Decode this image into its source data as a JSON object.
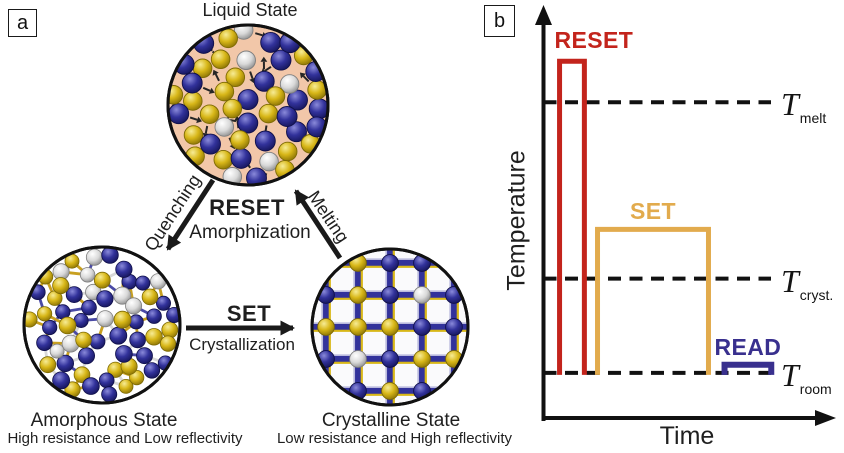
{
  "figure": {
    "panel_a": {
      "label": "a",
      "liquid": {
        "title": "Liquid State"
      },
      "transitions": {
        "quenching": "Quenching",
        "melting": "Melting",
        "reset": "RESET",
        "reset_sub": "Amorphization",
        "set": "SET",
        "set_sub": "Crystallization"
      },
      "amorphous": {
        "title": "Amorphous State",
        "subtitle": "High resistance and Low reflectivity"
      },
      "crystalline": {
        "title": "Crystalline State",
        "subtitle": "Low resistance and High reflectivity"
      },
      "colors": {
        "liquid_bg": "#f2c7a9",
        "atom_navy": "#32329b",
        "atom_gold": "#d8b718",
        "atom_silver": "#d9d9d9"
      }
    },
    "panel_b": {
      "label": "b",
      "y_axis": "Temperature",
      "x_axis": "Time",
      "pulses": [
        {
          "name": "RESET",
          "color": "#c3241c"
        },
        {
          "name": "SET",
          "color": "#e2ab4d"
        },
        {
          "name": "READ",
          "color": "#39308e"
        }
      ],
      "thresholds": [
        {
          "symbol": "T",
          "sub": "melt"
        },
        {
          "symbol": "T",
          "sub": "cryst."
        },
        {
          "symbol": "T",
          "sub": "room"
        }
      ]
    }
  },
  "chart_data": {
    "type": "line",
    "title": "",
    "xlabel": "Time",
    "ylabel": "Temperature",
    "grid": false,
    "axes_note": "schematic pulse diagram, unitless normalized coordinates",
    "reference_lines": [
      {
        "label": "T_melt",
        "y": 0.77
      },
      {
        "label": "T_cryst.",
        "y": 0.34
      },
      {
        "label": "T_room",
        "y": 0.11
      }
    ],
    "series": [
      {
        "name": "RESET",
        "color": "#c3241c",
        "shape": "rect-pulse",
        "t_start": 0.055,
        "t_end": 0.14,
        "baseline": 0.11,
        "peak": 0.87
      },
      {
        "name": "SET",
        "color": "#e2ab4d",
        "shape": "rect-pulse",
        "t_start": 0.185,
        "t_end": 0.565,
        "baseline": 0.11,
        "peak": 0.46
      },
      {
        "name": "READ",
        "color": "#39308e",
        "shape": "rect-pulse",
        "t_start": 0.62,
        "t_end": 0.78,
        "baseline": 0.11,
        "peak": 0.13
      }
    ],
    "legend": "pulse labels adjacent to pulses"
  }
}
